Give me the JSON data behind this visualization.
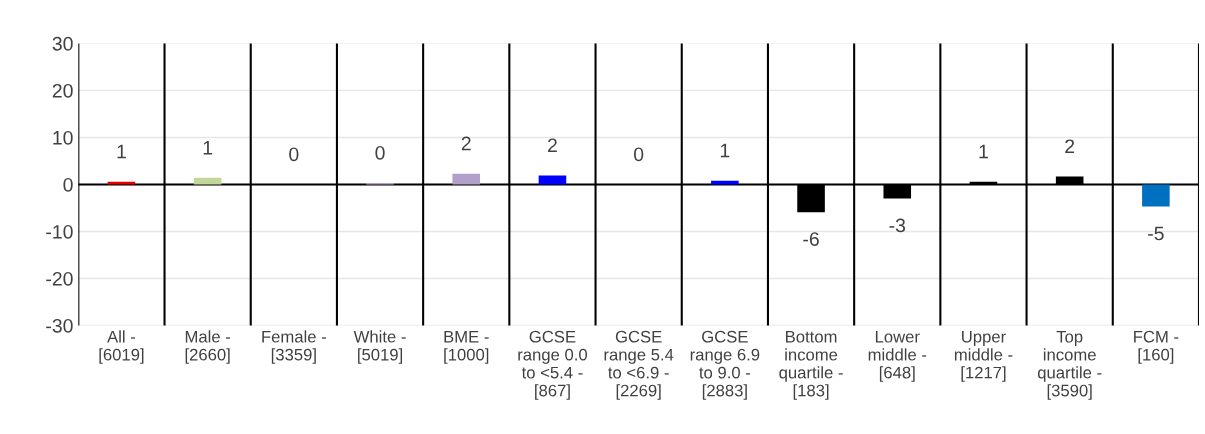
{
  "chart_data": {
    "type": "bar",
    "categories": [
      "All -\n[6019]",
      "Male -\n[2660]",
      "Female -\n[3359]",
      "White -\n[5019]",
      "BME -\n[1000]",
      "GCSE\nrange 0.0\nto <5.4 -\n[867]",
      "GCSE\nrange 5.4\nto <6.9 -\n[2269]",
      "GCSE\nrange 6.9\nto 9.0 -\n[2883]",
      "Bottom\nincome\nquartile -\n[183]",
      "Lower\nmiddle -\n[648]",
      "Upper\nmiddle -\n[1217]",
      "Top\nincome\nquartile -\n[3590]",
      "FCM -\n[160]"
    ],
    "values": [
      0.6,
      1.4,
      0,
      0.3,
      2.3,
      1.9,
      0,
      0.8,
      -5.9,
      -3.0,
      0.6,
      1.7,
      -4.7
    ],
    "value_labels": [
      "1",
      "1",
      "0",
      "0",
      "2",
      "2",
      "0",
      "1",
      "-6",
      "-3",
      "1",
      "2",
      "-5"
    ],
    "colors": [
      "#e00000",
      "#c4d79b",
      null,
      "#b1a0c7",
      "#b1a0c7",
      "#0000ff",
      null,
      "#0000ff",
      "#000000",
      "#000000",
      "#000000",
      "#000000",
      "#0070c0"
    ],
    "ylim": [
      -30,
      30
    ],
    "yticks": [
      -30,
      -20,
      -10,
      0,
      10,
      20,
      30
    ],
    "grid": true
  }
}
